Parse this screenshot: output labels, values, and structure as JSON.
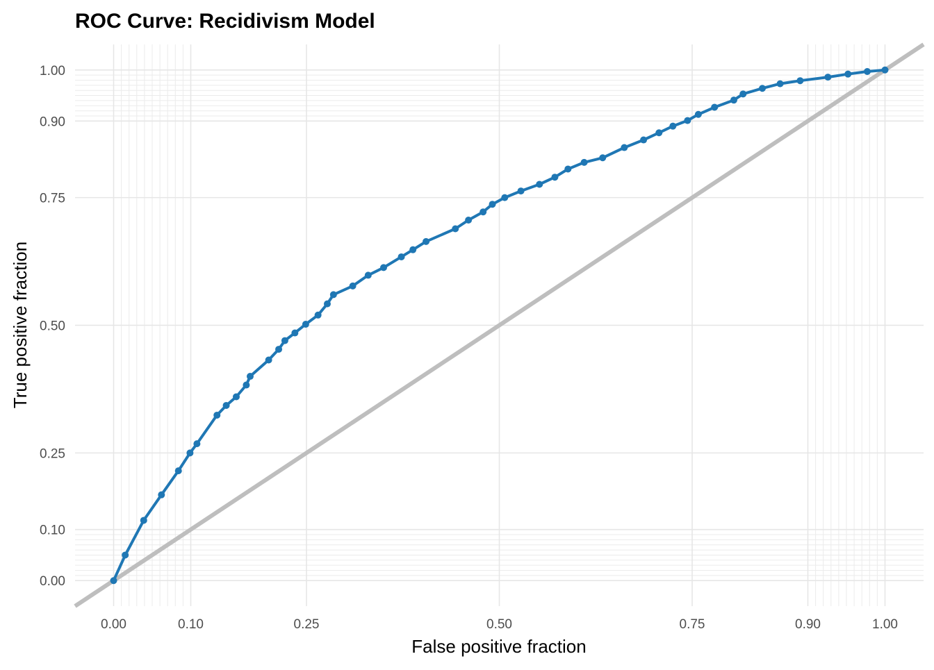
{
  "chart_data": {
    "type": "line",
    "title": "ROC Curve: Recidivism Model",
    "xlabel": "False positive fraction",
    "ylabel": "True positive fraction",
    "xlim": [
      -0.05,
      1.05
    ],
    "ylim": [
      -0.05,
      1.05
    ],
    "x_ticks": [
      "0.00",
      "0.10",
      "0.25",
      "0.50",
      "0.75",
      "0.90",
      "1.00"
    ],
    "y_ticks": [
      "0.00",
      "0.10",
      "0.25",
      "0.50",
      "0.75",
      "0.90",
      "1.00"
    ],
    "grid": true,
    "minor_grid": true,
    "reference_line": {
      "x": [
        -0.05,
        1.05
      ],
      "y": [
        -0.05,
        1.05
      ],
      "color": "#bebebe"
    },
    "series": [
      {
        "color": "#1f77b4",
        "x": [
          0.0,
          0.015,
          0.039,
          0.062,
          0.084,
          0.099,
          0.108,
          0.134,
          0.146,
          0.159,
          0.172,
          0.177,
          0.201,
          0.214,
          0.222,
          0.235,
          0.249,
          0.265,
          0.277,
          0.285,
          0.31,
          0.33,
          0.35,
          0.373,
          0.388,
          0.405,
          0.443,
          0.46,
          0.479,
          0.491,
          0.507,
          0.528,
          0.552,
          0.572,
          0.589,
          0.61,
          0.634,
          0.662,
          0.687,
          0.707,
          0.725,
          0.744,
          0.758,
          0.779,
          0.804,
          0.816,
          0.841,
          0.864,
          0.89,
          0.926,
          0.952,
          0.977,
          1.0
        ],
        "y": [
          0.0,
          0.05,
          0.118,
          0.168,
          0.215,
          0.25,
          0.268,
          0.324,
          0.343,
          0.36,
          0.383,
          0.4,
          0.432,
          0.453,
          0.47,
          0.485,
          0.502,
          0.52,
          0.542,
          0.56,
          0.577,
          0.598,
          0.613,
          0.634,
          0.648,
          0.664,
          0.689,
          0.706,
          0.722,
          0.737,
          0.75,
          0.763,
          0.776,
          0.79,
          0.806,
          0.819,
          0.828,
          0.848,
          0.863,
          0.877,
          0.89,
          0.901,
          0.913,
          0.927,
          0.941,
          0.953,
          0.964,
          0.973,
          0.979,
          0.986,
          0.992,
          0.997,
          1.0
        ]
      }
    ]
  }
}
